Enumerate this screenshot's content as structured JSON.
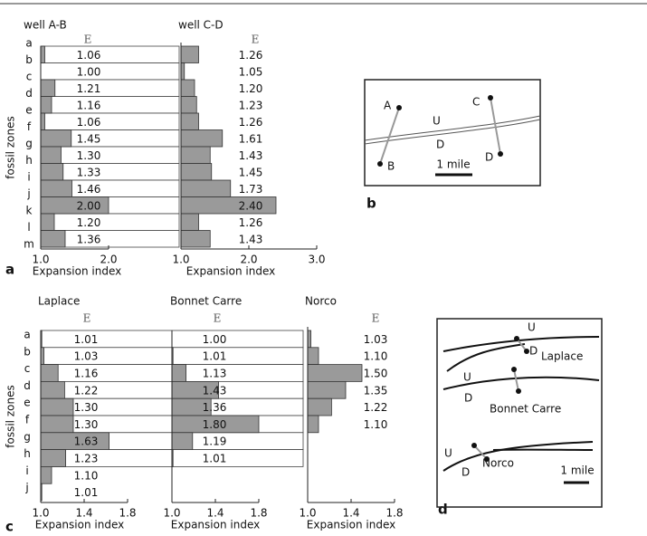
{
  "chart_data": [
    {
      "type": "bar",
      "orientation": "horizontal",
      "title": "well A-B",
      "header": "E",
      "ylabel": "fossil zones",
      "xlabel": "Expansion index",
      "zones": [
        "a",
        "b",
        "c",
        "d",
        "e",
        "f",
        "g",
        "h",
        "i",
        "j",
        "k",
        "l",
        "m"
      ],
      "values": [
        1.06,
        1.0,
        1.21,
        1.16,
        1.06,
        1.45,
        1.3,
        1.33,
        1.46,
        2.0,
        1.2,
        1.36
      ],
      "value_labels": [
        "1.06",
        "1.00",
        "1.21",
        "1.16",
        "1.06",
        "1.45",
        "1.30",
        "1.33",
        "1.46",
        "2.00",
        "1.20",
        "1.36"
      ],
      "xlim": [
        1,
        3
      ],
      "xticks": [
        {
          "value": 1,
          "label": "1.0"
        },
        {
          "value": 2,
          "label": "2.0"
        }
      ],
      "color": "#9a9a9a"
    },
    {
      "type": "bar",
      "orientation": "horizontal",
      "title": "well C-D",
      "header": "E",
      "xlabel": "Expansion index",
      "values": [
        1.26,
        1.05,
        1.2,
        1.23,
        1.26,
        1.61,
        1.43,
        1.45,
        1.73,
        2.4,
        1.26,
        1.43
      ],
      "value_labels": [
        "1.26",
        "1.05",
        "1.20",
        "1.23",
        "1.26",
        "1.61",
        "1.43",
        "1.45",
        "1.73",
        "2.40",
        "1.26",
        "1.43"
      ],
      "xlim": [
        1,
        3
      ],
      "xticks": [
        {
          "value": 1,
          "label": "1.0"
        },
        {
          "value": 2,
          "label": "2.0"
        },
        {
          "value": 3,
          "label": "3.0"
        }
      ],
      "color": "#9a9a9a"
    },
    {
      "type": "bar",
      "orientation": "horizontal",
      "title": "Laplace",
      "header": "E",
      "ylabel": "fossil zones",
      "xlabel": "Expansion index",
      "categories": [
        "a",
        "b",
        "c",
        "d",
        "e",
        "f",
        "g",
        "h",
        "i",
        "j"
      ],
      "values": [
        1.01,
        1.03,
        1.16,
        1.22,
        1.3,
        1.3,
        1.63,
        1.23,
        1.1,
        1.01
      ],
      "value_labels": [
        "1.01",
        "1.03",
        "1.16",
        "1.22",
        "1.30",
        "1.30",
        "1.63",
        "1.23",
        "1.10",
        "1.01"
      ],
      "xlim": [
        1,
        2.2
      ],
      "xticks": [
        {
          "value": 1,
          "label": "1.0"
        },
        1.4,
        1.8
      ],
      "color": "#9a9a9a"
    },
    {
      "type": "bar",
      "orientation": "horizontal",
      "title": "Bonnet Carre",
      "header": "E",
      "xlabel": "Expansion index",
      "values": [
        1.0,
        1.01,
        1.13,
        1.43,
        1.36,
        1.8,
        1.19,
        1.01
      ],
      "value_labels": [
        "1.00",
        "1.01",
        "1.13",
        "1.43",
        "1.36",
        "1.80",
        "1.19",
        "1.01"
      ],
      "xlim": [
        1,
        2.2
      ],
      "xticks": [
        {
          "value": 1,
          "label": "1.0"
        },
        1.4,
        1.8
      ],
      "color": "#9a9a9a"
    },
    {
      "type": "bar",
      "orientation": "horizontal",
      "title": "Norco",
      "header": "E",
      "xlabel": "Expansion index",
      "values": [
        1.03,
        1.1,
        1.5,
        1.35,
        1.22,
        1.1
      ],
      "value_labels": [
        "1.03",
        "1.10",
        "1.50",
        "1.35",
        "1.22",
        "1.10"
      ],
      "xlim": [
        1,
        2.2
      ],
      "xticks": [
        {
          "value": 1,
          "label": "1.0"
        },
        1.4,
        1.8
      ],
      "color": "#9a9a9a"
    }
  ],
  "panel_labels": [
    "a",
    "b",
    "c",
    "d"
  ],
  "diagrams": {
    "b": {
      "wells": [
        "A",
        "B",
        "C",
        "D"
      ],
      "upthrown": "U",
      "downthrown": "D",
      "scale": "1 mile"
    },
    "d": {
      "upthrown": "U",
      "downthrown": "D",
      "sites": [
        "Laplace",
        "Bonnet Carre",
        "Norco"
      ],
      "scale": "1 mile"
    }
  }
}
